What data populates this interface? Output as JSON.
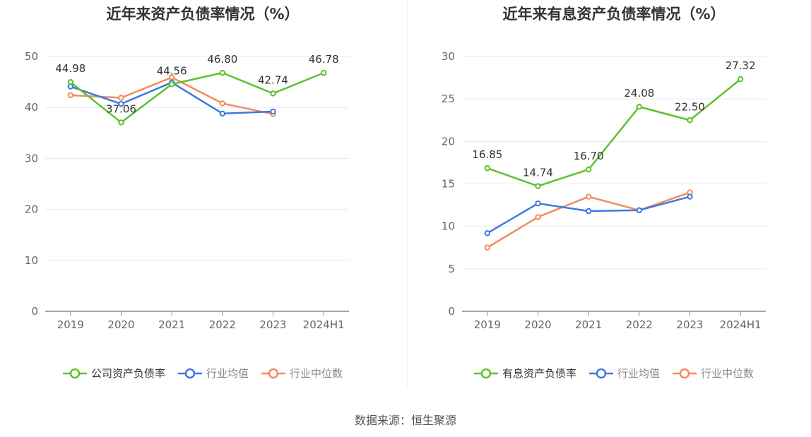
{
  "source": "数据来源：恒生聚源",
  "legend_labels": {
    "left_company": "公司资产负债率",
    "right_company": "有息资产负债率",
    "industry_avg": "行业均值",
    "industry_median": "行业中位数"
  },
  "colors": {
    "company": "#5dc22c",
    "industry_avg": "#3f78e0",
    "industry_median": "#f28c5f",
    "grid": "#e6e9f3",
    "axis": "#888888"
  },
  "chart_data": [
    {
      "type": "line",
      "title": "近年来资产负债率情况（%）",
      "categories": [
        "2019",
        "2020",
        "2021",
        "2022",
        "2023",
        "2024H1"
      ],
      "ylim": [
        0,
        50
      ],
      "yticks": [
        0,
        10,
        20,
        30,
        40,
        50
      ],
      "series": [
        {
          "name": "公司资产负债率",
          "values": [
            44.98,
            37.06,
            44.56,
            46.8,
            42.74,
            46.78
          ]
        },
        {
          "name": "行业均值",
          "values": [
            44.1,
            40.7,
            44.9,
            38.8,
            39.2,
            null
          ]
        },
        {
          "name": "行业中位数",
          "values": [
            42.4,
            41.9,
            45.9,
            40.8,
            38.7,
            null
          ]
        }
      ],
      "data_labels": [
        "44.98",
        "37.06",
        "44.56",
        "46.80",
        "42.74",
        "46.78"
      ],
      "grid": true,
      "legend_position": "bottom"
    },
    {
      "type": "line",
      "title": "近年来有息资产负债率情况（%）",
      "categories": [
        "2019",
        "2020",
        "2021",
        "2022",
        "2023",
        "2024H1"
      ],
      "ylim": [
        0,
        30
      ],
      "yticks": [
        0,
        5,
        10,
        15,
        20,
        25,
        30
      ],
      "series": [
        {
          "name": "有息资产负债率",
          "values": [
            16.85,
            14.74,
            16.7,
            24.08,
            22.5,
            27.32
          ]
        },
        {
          "name": "行业均值",
          "values": [
            9.2,
            12.7,
            11.8,
            11.9,
            13.5,
            null
          ]
        },
        {
          "name": "行业中位数",
          "values": [
            7.5,
            11.1,
            13.5,
            11.9,
            14.0,
            null
          ]
        }
      ],
      "data_labels": [
        "16.85",
        "14.74",
        "16.70",
        "24.08",
        "22.50",
        "27.32"
      ],
      "grid": true,
      "legend_position": "bottom"
    }
  ]
}
